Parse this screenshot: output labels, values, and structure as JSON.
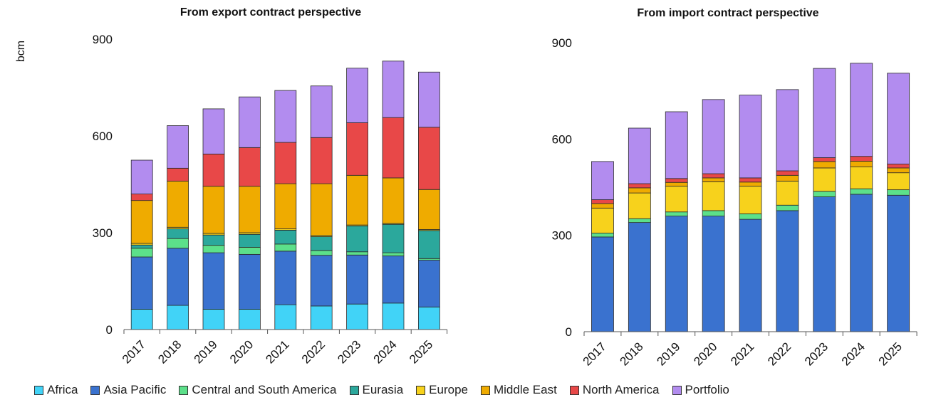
{
  "colors": {
    "Africa": "#41d3f7",
    "Asia Pacific": "#3a72cf",
    "Central and South America": "#5ce08a",
    "Eurasia": "#2ba89c",
    "Europe": "#f7d21c",
    "Middle East": "#efab00",
    "North America": "#e84848",
    "Portfolio": "#b28cef"
  },
  "legend": [
    "Africa",
    "Asia Pacific",
    "Central and South America",
    "Eurasia",
    "Europe",
    "Middle East",
    "North America",
    "Portfolio"
  ],
  "chart_data": [
    {
      "type": "bar",
      "stacked": true,
      "title": "From export contract perspective",
      "ylabel": "bcm",
      "ylim": [
        0,
        900
      ],
      "yticks": [
        0,
        300,
        600,
        900
      ],
      "categories": [
        "2017",
        "2018",
        "2019",
        "2020",
        "2021",
        "2022",
        "2023",
        "2024",
        "2025"
      ],
      "series": [
        {
          "name": "Africa",
          "values": [
            63,
            75,
            63,
            63,
            77,
            73,
            79,
            82,
            70
          ]
        },
        {
          "name": "Asia Pacific",
          "values": [
            162,
            177,
            175,
            170,
            166,
            157,
            152,
            146,
            145
          ]
        },
        {
          "name": "Central and South America",
          "values": [
            27,
            30,
            23,
            22,
            22,
            15,
            10,
            10,
            5
          ]
        },
        {
          "name": "Eurasia",
          "values": [
            10,
            30,
            32,
            40,
            43,
            43,
            80,
            88,
            87
          ]
        },
        {
          "name": "Europe",
          "values": [
            5,
            5,
            5,
            5,
            4,
            4,
            3,
            3,
            3
          ]
        },
        {
          "name": "Middle East",
          "values": [
            133,
            143,
            146,
            144,
            140,
            160,
            154,
            141,
            124
          ]
        },
        {
          "name": "North America",
          "values": [
            20,
            40,
            100,
            120,
            128,
            143,
            163,
            187,
            193
          ]
        },
        {
          "name": "Portfolio",
          "values": [
            105,
            132,
            140,
            157,
            161,
            160,
            169,
            175,
            171
          ]
        }
      ]
    },
    {
      "type": "bar",
      "stacked": true,
      "title": "From import contract perspective",
      "ylabel": "",
      "ylim": [
        0,
        900
      ],
      "yticks": [
        0,
        300,
        600,
        900
      ],
      "categories": [
        "2017",
        "2018",
        "2019",
        "2020",
        "2021",
        "2022",
        "2023",
        "2024",
        "2025"
      ],
      "series": [
        {
          "name": "Africa",
          "values": [
            0,
            0,
            0,
            0,
            0,
            0,
            0,
            0,
            0
          ]
        },
        {
          "name": "Asia Pacific",
          "values": [
            295,
            340,
            360,
            360,
            350,
            377,
            420,
            428,
            425
          ]
        },
        {
          "name": "Central and South America",
          "values": [
            12,
            12,
            13,
            17,
            17,
            17,
            17,
            17,
            17
          ]
        },
        {
          "name": "Eurasia",
          "values": [
            0,
            0,
            0,
            0,
            0,
            0,
            0,
            0,
            0
          ]
        },
        {
          "name": "Europe",
          "values": [
            78,
            80,
            80,
            90,
            86,
            75,
            73,
            68,
            53
          ]
        },
        {
          "name": "Middle East",
          "values": [
            14,
            16,
            12,
            12,
            13,
            18,
            20,
            18,
            15
          ]
        },
        {
          "name": "North America",
          "values": [
            12,
            13,
            12,
            13,
            13,
            14,
            12,
            15,
            12
          ]
        },
        {
          "name": "Portfolio",
          "values": [
            119,
            173,
            208,
            231,
            258,
            253,
            278,
            290,
            283
          ]
        }
      ]
    }
  ]
}
